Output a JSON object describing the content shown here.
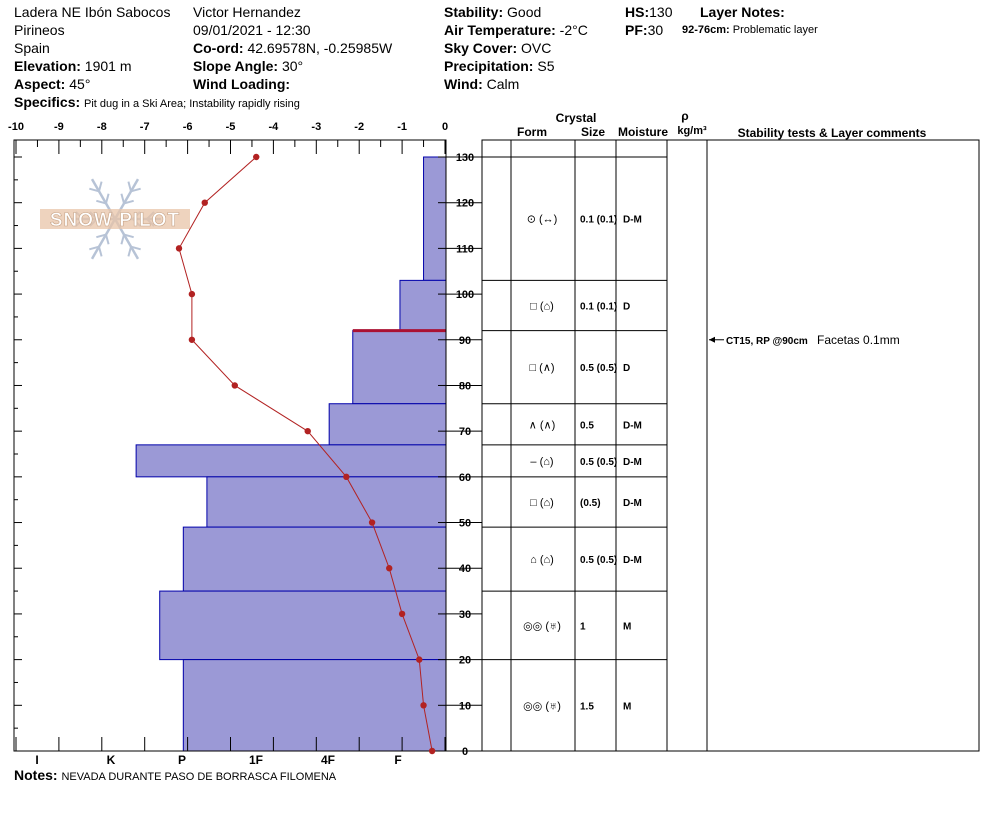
{
  "header": {
    "location": "Ladera NE Ibón Sabocos",
    "region": "Pirineos",
    "country": "Spain",
    "elevation_label": "Elevation:",
    "elevation": "1901 m",
    "aspect_label": "Aspect:",
    "aspect": "45°",
    "observer": "Victor Hernandez",
    "datetime": "09/01/2021 - 12:30",
    "coord_label": "Co-ord:",
    "coord": "42.69578N, -0.25985W",
    "slope_label": "Slope Angle:",
    "slope": "30°",
    "wind_loading_label": "Wind Loading:",
    "wind_loading": "",
    "stability_label": "Stability:",
    "stability": "Good",
    "air_temp_label": "Air Temperature:",
    "air_temp": "-2°C",
    "sky_label": "Sky Cover:",
    "sky": "OVC",
    "precip_label": "Precipitation:",
    "precip": "S5",
    "wind_label": "Wind:",
    "wind": "Calm",
    "hs_label": "HS:",
    "hs": "130",
    "pf_label": "PF:",
    "pf": "30",
    "layer_notes_label": "Layer Notes:",
    "layer_note_range": "92-76cm:",
    "layer_note_text": "Problematic layer",
    "specifics_label": "Specifics:",
    "specifics": "Pit dug in a Ski Area; Instability rapidly rising"
  },
  "notes_label": "Notes:",
  "notes": "NEVADA DURANTE PASO DE BORRASCA FILOMENA",
  "watermark": "SNOW PILOT",
  "table_headers": {
    "crystal": "Crystal",
    "form": "Form",
    "size": "Size",
    "moisture": "Moisture",
    "rho": "ρ",
    "density_unit": "kg/m³",
    "comments": "Stability tests & Layer comments"
  },
  "chart_data": {
    "type": "snow_profile",
    "temperature_axis": {
      "min": -10,
      "max": 0,
      "ticks": [
        -10,
        -9,
        -8,
        -7,
        -6,
        -5,
        -4,
        -3,
        -2,
        -1,
        0
      ]
    },
    "depth_axis": {
      "min": 0,
      "max": 130,
      "ticks": [
        0,
        10,
        20,
        30,
        40,
        50,
        60,
        70,
        80,
        90,
        100,
        110,
        120,
        130
      ]
    },
    "hardness_axis": {
      "labels": [
        "I",
        "K",
        "P",
        "1F",
        "4F",
        "F"
      ]
    },
    "temperature_profile": [
      {
        "depth": 130,
        "temp": -4.4
      },
      {
        "depth": 120,
        "temp": -5.6
      },
      {
        "depth": 110,
        "temp": -6.2
      },
      {
        "depth": 100,
        "temp": -5.9
      },
      {
        "depth": 90,
        "temp": -5.9
      },
      {
        "depth": 80,
        "temp": -4.9
      },
      {
        "depth": 70,
        "temp": -3.2
      },
      {
        "depth": 60,
        "temp": -2.3
      },
      {
        "depth": 50,
        "temp": -1.7
      },
      {
        "depth": 40,
        "temp": -1.3
      },
      {
        "depth": 30,
        "temp": -1.0
      },
      {
        "depth": 20,
        "temp": -0.6
      },
      {
        "depth": 10,
        "temp": -0.5
      },
      {
        "depth": 0,
        "temp": -0.3
      }
    ],
    "hardness_bars": [
      {
        "top": 130,
        "bottom": 103,
        "x_value": -0.5
      },
      {
        "top": 103,
        "bottom": 92,
        "x_value": -1.05
      },
      {
        "top": 92,
        "bottom": 76,
        "x_value": -2.15
      },
      {
        "top": 76,
        "bottom": 67,
        "x_value": -2.7
      },
      {
        "top": 67,
        "bottom": 60,
        "x_value": -7.2
      },
      {
        "top": 60,
        "bottom": 49,
        "x_value": -5.55
      },
      {
        "top": 49,
        "bottom": 35,
        "x_value": -6.1
      },
      {
        "top": 35,
        "bottom": 20,
        "x_value": -6.65
      },
      {
        "top": 20,
        "bottom": 0,
        "x_value": -6.1
      }
    ],
    "problem_layer": {
      "depth": 92
    },
    "layers": [
      {
        "top": 130,
        "bottom": 103,
        "form": "⊙ (↔)",
        "size": "0.1 (0.1)",
        "moisture": "D-M"
      },
      {
        "top": 103,
        "bottom": 92,
        "form": "□ (⌂)",
        "size": "0.1 (0.1)",
        "moisture": "D"
      },
      {
        "top": 92,
        "bottom": 76,
        "form": "□ (∧)",
        "size": "0.5 (0.5)",
        "moisture": "D"
      },
      {
        "top": 76,
        "bottom": 67,
        "form": "∧ (∧)",
        "size": "0.5",
        "moisture": "D-M"
      },
      {
        "top": 67,
        "bottom": 60,
        "form": "– (⌂)",
        "size": "0.5 (0.5)",
        "moisture": "D-M"
      },
      {
        "top": 60,
        "bottom": 49,
        "form": "□ (⌂)",
        "size": "(0.5)",
        "moisture": "D-M"
      },
      {
        "top": 49,
        "bottom": 35,
        "form": "⌂ (⌂)",
        "size": "0.5 (0.5)",
        "moisture": "D-M"
      },
      {
        "top": 35,
        "bottom": 20,
        "form": "◎◎ (♅)",
        "size": "1",
        "moisture": "M"
      },
      {
        "top": 20,
        "bottom": 0,
        "form": "◎◎ (♅)",
        "size": "1.5",
        "moisture": "M"
      }
    ],
    "stability_test": {
      "depth": 90,
      "label": "CT15, RP @90cm",
      "comment": "Facetas 0.1mm"
    },
    "colors": {
      "bars": "#9b99d6",
      "bar_edge": "#0000aa",
      "temp_line": "#b22222",
      "problem_layer": "#aa1133"
    }
  }
}
